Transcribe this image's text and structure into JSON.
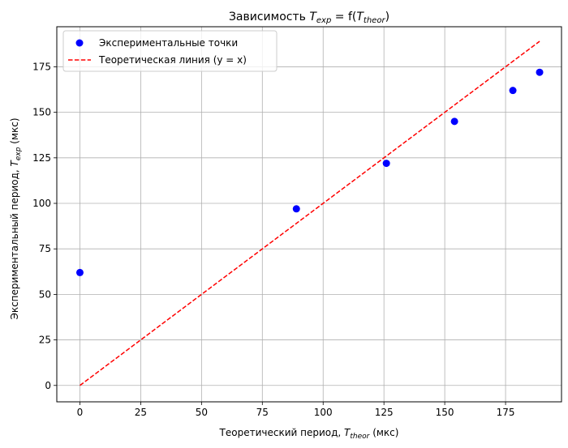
{
  "chart_data": {
    "type": "scatter",
    "title": {
      "prefix": "Зависимость ",
      "t_main": "T",
      "t_main_sub": "exp",
      "mid": " = f(",
      "t_arg": "T",
      "t_arg_sub": "theor",
      "suffix": ")"
    },
    "xlabel": {
      "prefix": "Теоретический период, ",
      "sym": "T",
      "sub": "theor",
      "suffix": " (мкс)"
    },
    "ylabel": {
      "prefix": "Экспериментальный период, ",
      "sym": "T",
      "sub": "exp",
      "suffix": " (мкс)"
    },
    "xlim": [
      -9.5,
      198
    ],
    "ylim": [
      -9,
      197
    ],
    "xticks": [
      0,
      25,
      50,
      75,
      100,
      125,
      150,
      175
    ],
    "yticks": [
      0,
      25,
      50,
      75,
      100,
      125,
      150,
      175
    ],
    "grid": true,
    "legend_position": "top-left",
    "series": [
      {
        "name": "Экспериментальные точки",
        "kind": "scatter",
        "color": "#0000ff",
        "x": [
          0,
          89,
          126,
          154,
          178,
          189
        ],
        "y": [
          62,
          97,
          122,
          145,
          162,
          172
        ]
      },
      {
        "name": "Теоретическая линия (y = x)",
        "kind": "line",
        "style": "dashed",
        "color": "#ff0000",
        "x": [
          0,
          189
        ],
        "y": [
          0,
          189
        ]
      }
    ]
  }
}
